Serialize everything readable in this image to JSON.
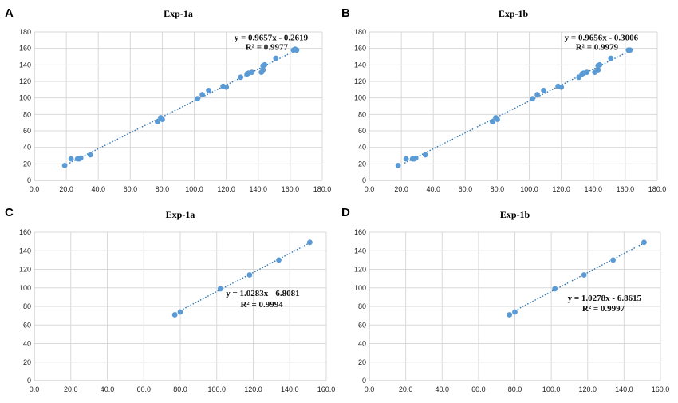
{
  "chart_data": [
    {
      "type": "scatter",
      "letter": "A",
      "title": "Exp-1a",
      "xlim": [
        0,
        180
      ],
      "xstep": 20,
      "ylim": [
        0,
        180
      ],
      "ystep": 20,
      "xticklabels": [
        "0.0",
        "20.0",
        "40.0",
        "60.0",
        "80.0",
        "100.0",
        "120.0",
        "140.0",
        "160.0",
        "180.0"
      ],
      "yticklabels": [
        "0",
        "20",
        "40",
        "60",
        "80",
        "100",
        "120",
        "140",
        "160",
        "180"
      ],
      "trendline": {
        "slope": 0.9657,
        "intercept": -0.2619,
        "x_range": [
          22,
          165
        ]
      },
      "equation": "y = 0.9657x - 0.2619",
      "r2": "R² = 0.9977",
      "equation_anchor": [
        125,
        170
      ],
      "r2_anchor": [
        132,
        158
      ],
      "points": [
        [
          19,
          18
        ],
        [
          23,
          26
        ],
        [
          27,
          26
        ],
        [
          28,
          26
        ],
        [
          29,
          27
        ],
        [
          35,
          31
        ],
        [
          77,
          71
        ],
        [
          79,
          76
        ],
        [
          80,
          74
        ],
        [
          102,
          99
        ],
        [
          105,
          104
        ],
        [
          109,
          109
        ],
        [
          118,
          114
        ],
        [
          120,
          113
        ],
        [
          129,
          125
        ],
        [
          133,
          129
        ],
        [
          134,
          130
        ],
        [
          136,
          131
        ],
        [
          142,
          131
        ],
        [
          143,
          134
        ],
        [
          143,
          139
        ],
        [
          144,
          140
        ],
        [
          151,
          148
        ],
        [
          162,
          158
        ],
        [
          163,
          159
        ],
        [
          164,
          158
        ]
      ]
    },
    {
      "type": "scatter",
      "letter": "B",
      "title": "Exp-1b",
      "xlim": [
        0,
        180
      ],
      "xstep": 20,
      "ylim": [
        0,
        180
      ],
      "ystep": 20,
      "xticklabels": [
        "0.0",
        "20.0",
        "40.0",
        "60.0",
        "80.0",
        "100.0",
        "120.0",
        "140.0",
        "160.0",
        "180.0"
      ],
      "yticklabels": [
        "0",
        "20",
        "40",
        "60",
        "80",
        "100",
        "120",
        "140",
        "160",
        "180"
      ],
      "trendline": {
        "slope": 0.9656,
        "intercept": -0.3006,
        "x_range": [
          22,
          165
        ]
      },
      "equation": "y = 0.9656x - 0.3006",
      "r2": "R² = 0.9979",
      "equation_anchor": [
        122,
        170
      ],
      "r2_anchor": [
        129,
        158
      ],
      "points": [
        [
          18,
          18
        ],
        [
          23,
          26
        ],
        [
          27,
          26
        ],
        [
          28,
          26
        ],
        [
          29,
          27
        ],
        [
          35,
          31
        ],
        [
          77,
          71
        ],
        [
          79,
          76
        ],
        [
          80,
          74
        ],
        [
          102,
          99
        ],
        [
          105,
          104
        ],
        [
          109,
          109
        ],
        [
          118,
          114
        ],
        [
          120,
          113
        ],
        [
          131,
          125
        ],
        [
          133,
          129
        ],
        [
          134,
          130
        ],
        [
          136,
          131
        ],
        [
          141,
          131
        ],
        [
          143,
          134
        ],
        [
          143,
          139
        ],
        [
          144,
          140
        ],
        [
          151,
          148
        ],
        [
          162,
          158
        ],
        [
          163,
          158
        ]
      ]
    },
    {
      "type": "scatter",
      "letter": "C",
      "title": "Exp-1a",
      "xlim": [
        0,
        160
      ],
      "xstep": 20,
      "ylim": [
        0,
        160
      ],
      "ystep": 20,
      "xticklabels": [
        "0.0",
        "20.0",
        "40.0",
        "60.0",
        "80.0",
        "100.0",
        "120.0",
        "140.0",
        "160.0"
      ],
      "yticklabels": [
        "0",
        "20",
        "40",
        "60",
        "80",
        "100",
        "120",
        "140",
        "160"
      ],
      "trendline": {
        "slope": 1.0283,
        "intercept": -6.8081,
        "x_range": [
          76,
          152
        ]
      },
      "equation": "y = 1.0283x - 6.8081",
      "r2": "R² = 0.9994",
      "equation_anchor": [
        105,
        91
      ],
      "r2_anchor": [
        113,
        79
      ],
      "points": [
        [
          77,
          71
        ],
        [
          80,
          74
        ],
        [
          102,
          99
        ],
        [
          118,
          114
        ],
        [
          134,
          130
        ],
        [
          151,
          149
        ]
      ]
    },
    {
      "type": "scatter",
      "letter": "D",
      "title": "Exp-1b",
      "xlim": [
        0,
        160
      ],
      "xstep": 20,
      "ylim": [
        0,
        160
      ],
      "ystep": 20,
      "xticklabels": [
        "0.0",
        "20.0",
        "40.0",
        "60.0",
        "80.0",
        "100.0",
        "120.0",
        "140.0",
        "160.0"
      ],
      "yticklabels": [
        "0",
        "20",
        "40",
        "60",
        "80",
        "100",
        "120",
        "140",
        "160"
      ],
      "trendline": {
        "slope": 1.0278,
        "intercept": -6.8615,
        "x_range": [
          76,
          152
        ]
      },
      "equation": "y = 1.0278x - 6.8615",
      "r2": "R² = 0.9997",
      "equation_anchor": [
        109,
        86
      ],
      "r2_anchor": [
        117,
        75
      ],
      "points": [
        [
          77,
          71
        ],
        [
          80,
          74
        ],
        [
          102,
          99
        ],
        [
          118,
          114
        ],
        [
          134,
          130
        ],
        [
          151,
          149
        ]
      ]
    }
  ]
}
